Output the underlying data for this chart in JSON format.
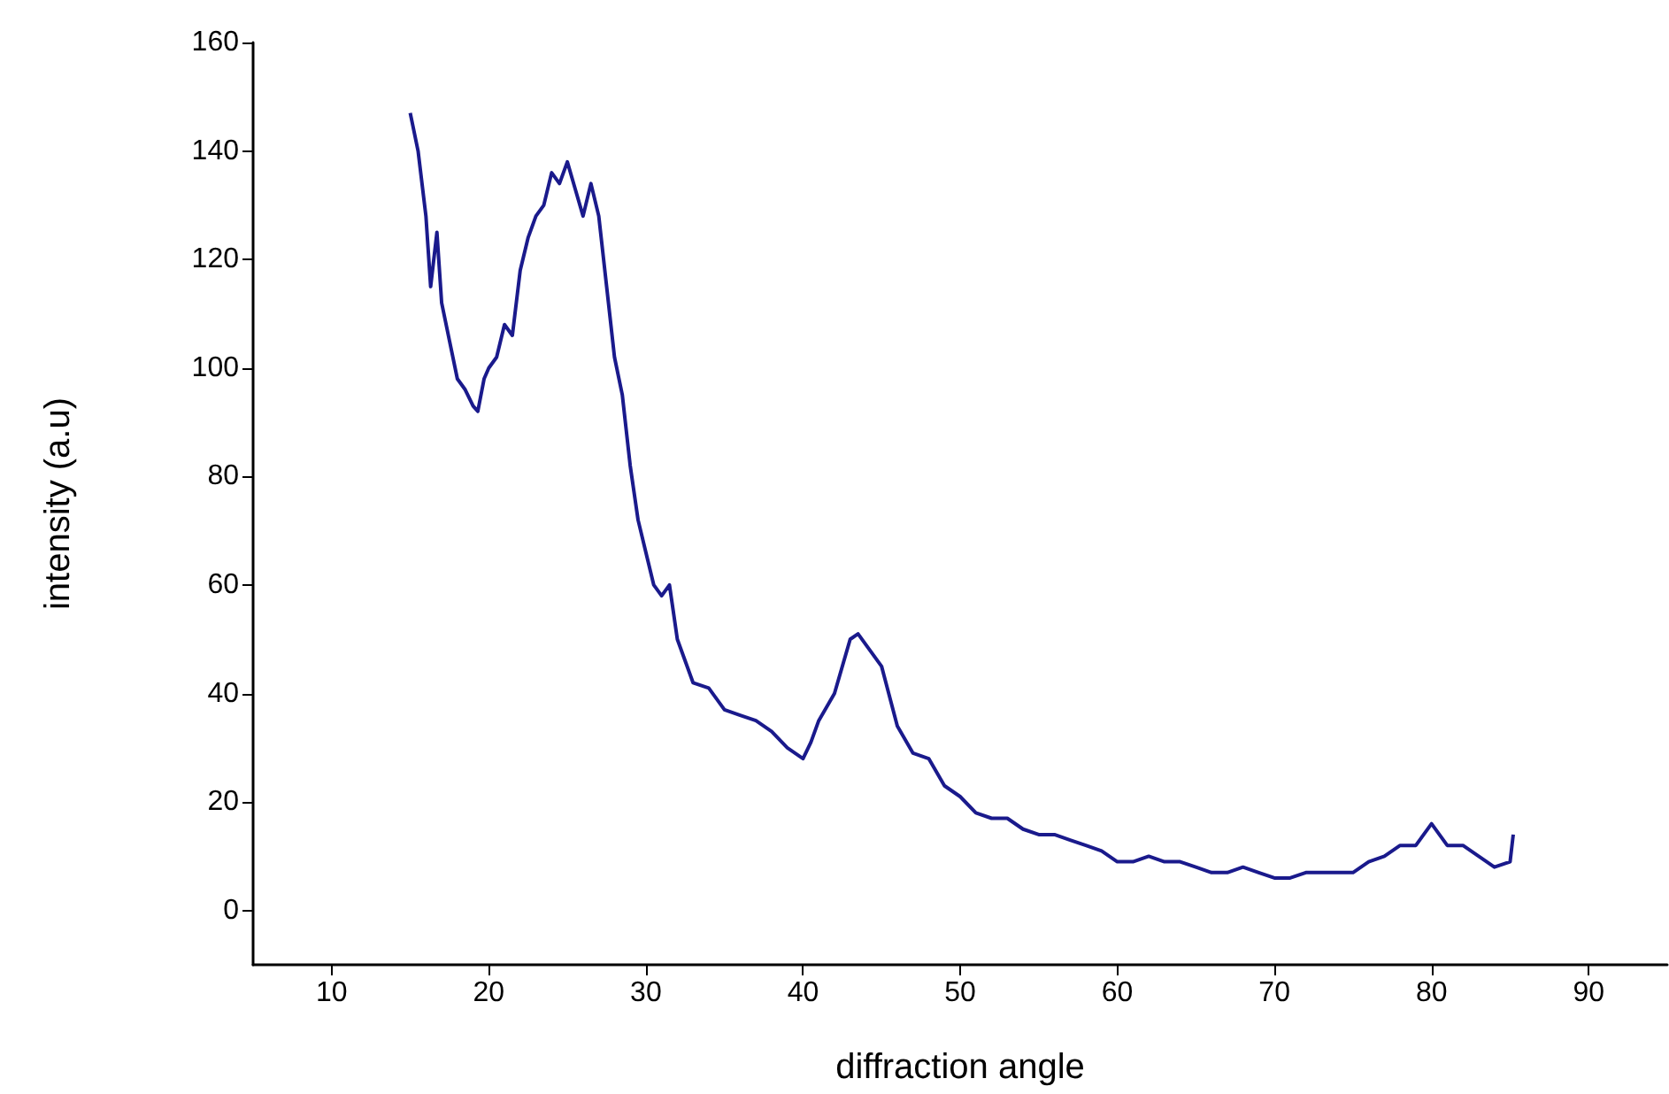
{
  "chart_data": {
    "type": "line",
    "xlabel": "diffraction angle",
    "ylabel": "intensity (a.u)",
    "x": [
      15,
      15.5,
      16,
      16.3,
      16.7,
      17,
      17.5,
      18,
      18.5,
      19,
      19.3,
      19.7,
      20,
      20.5,
      21,
      21.5,
      22,
      22.5,
      23,
      23.5,
      24,
      24.5,
      25,
      25.5,
      26,
      26.5,
      27,
      27.5,
      28,
      28.5,
      29,
      29.5,
      30,
      30.5,
      31,
      31.5,
      32,
      32.5,
      33,
      34,
      35,
      36,
      37,
      38,
      39,
      40,
      40.5,
      41,
      42,
      43,
      43.5,
      44,
      45,
      46,
      47,
      48,
      49,
      50,
      51,
      52,
      53,
      54,
      55,
      56,
      57,
      58,
      59,
      60,
      61,
      62,
      63,
      64,
      65,
      66,
      67,
      68,
      69,
      70,
      71,
      72,
      73,
      74,
      75,
      76,
      77,
      78,
      79,
      80,
      81,
      82,
      83,
      84,
      85,
      85.2
    ],
    "series": [
      {
        "color": "#1a1a8c",
        "values": [
          147,
          140,
          128,
          115,
          125,
          112,
          105,
          98,
          96,
          93,
          92,
          98,
          100,
          102,
          108,
          106,
          118,
          124,
          128,
          130,
          136,
          134,
          138,
          133,
          128,
          134,
          128,
          115,
          102,
          95,
          82,
          72,
          66,
          60,
          58,
          60,
          50,
          46,
          42,
          41,
          37,
          36,
          35,
          33,
          30,
          28,
          31,
          35,
          40,
          50,
          51,
          49,
          45,
          34,
          29,
          28,
          23,
          21,
          18,
          17,
          17,
          15,
          14,
          14,
          13,
          12,
          11,
          9,
          9,
          10,
          9,
          9,
          8,
          7,
          7,
          8,
          7,
          6,
          6,
          7,
          7,
          7,
          7,
          9,
          10,
          12,
          12,
          16,
          12,
          12,
          10,
          8,
          9,
          14
        ]
      }
    ],
    "xlim": [
      5,
      95
    ],
    "xticks": [
      10,
      20,
      30,
      40,
      50,
      60,
      70,
      80,
      90
    ],
    "ylim": [
      -10,
      160
    ],
    "yticks": [
      0,
      20,
      40,
      60,
      80,
      100,
      120,
      140,
      160
    ],
    "grid": false,
    "marker": "none",
    "line_style": "solid"
  }
}
